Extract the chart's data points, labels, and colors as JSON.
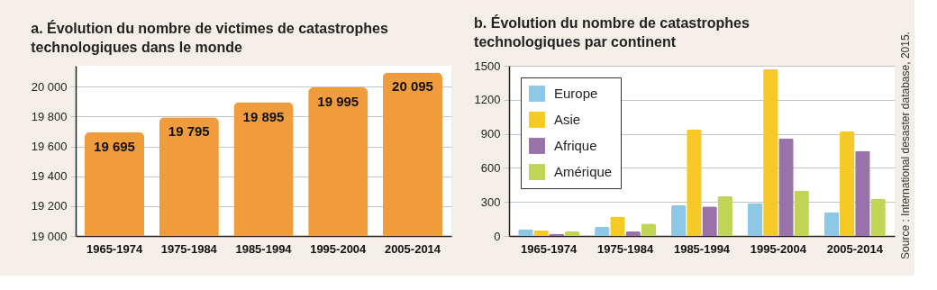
{
  "chart_data": [
    {
      "type": "bar",
      "title": "a. Évolution du nombre de victimes de catastrophes technologiques dans le monde",
      "categories": [
        "1965-1974",
        "1975-1984",
        "1985-1994",
        "1995-2004",
        "2005-2014"
      ],
      "values": [
        19695,
        19795,
        19895,
        19995,
        20095
      ],
      "value_labels": [
        "19 695",
        "19 795",
        "19 895",
        "19 995",
        "20 095"
      ],
      "color": "#f09b3c",
      "ylim": [
        19000,
        20140
      ],
      "yticks": [
        {
          "value": 19000,
          "label": "19 000"
        },
        {
          "value": 19200,
          "label": "19 200"
        },
        {
          "value": 19400,
          "label": "19 400"
        },
        {
          "value": 19600,
          "label": "19 600"
        },
        {
          "value": 19800,
          "label": "19 800"
        },
        {
          "value": 20000,
          "label": "20 000"
        }
      ],
      "grid": "y"
    },
    {
      "type": "bar",
      "title": "b. Évolution du nombre de catastrophes technologiques par continent",
      "categories": [
        "1965-1974",
        "1975-1984",
        "1985-1994",
        "1995-2004",
        "2005-2014"
      ],
      "series": [
        {
          "name": "Europe",
          "color": "#8cc8e6",
          "values": [
            60,
            80,
            270,
            290,
            210
          ]
        },
        {
          "name": "Asie",
          "color": "#f5c926",
          "values": [
            50,
            170,
            940,
            1470,
            920
          ]
        },
        {
          "name": "Afrique",
          "color": "#9a72aa",
          "values": [
            20,
            40,
            260,
            860,
            750
          ]
        },
        {
          "name": "Amérique",
          "color": "#c2d456",
          "values": [
            40,
            110,
            350,
            400,
            330
          ]
        }
      ],
      "ylim": [
        0,
        1500
      ],
      "yticks": [
        0,
        300,
        600,
        900,
        1200,
        1500
      ],
      "grid": "y",
      "legend": "top left",
      "annotations": [
        "Source : International desaster database, 2015."
      ]
    }
  ]
}
